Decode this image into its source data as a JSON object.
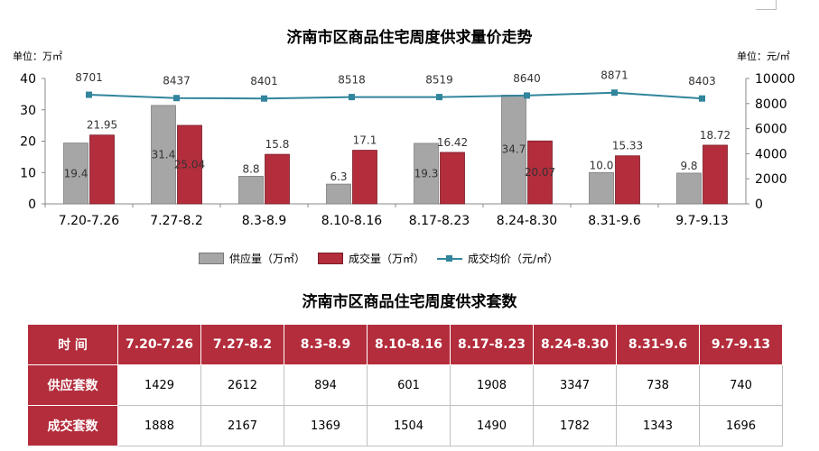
{
  "header": {
    "chart_title": "济南市区商品住宅周度供求量价走势",
    "left_unit": "单位：万㎡",
    "right_unit": "单位：元/㎡"
  },
  "legend": {
    "supply": "供应量（万㎡）",
    "deal": "成交量（万㎡）",
    "price": "成交均价（元/㎡）"
  },
  "colors": {
    "supply": "#a6a6a6",
    "deal": "#b32d3c",
    "price": "#31859c",
    "table_header": "#b32d3c"
  },
  "chart_data": {
    "type": "bar+line",
    "title": "济南市区商品住宅周度供求量价走势",
    "categories": [
      "7.20-7.26",
      "7.27-8.2",
      "8.3-8.9",
      "8.10-8.16",
      "8.17-8.23",
      "8.24-8.30",
      "8.31-9.6",
      "9.7-9.13"
    ],
    "series": [
      {
        "name": "供应量（万㎡）",
        "type": "bar",
        "axis": "left",
        "values": [
          19.4,
          31.4,
          8.8,
          6.3,
          19.3,
          34.7,
          10.0,
          9.8
        ]
      },
      {
        "name": "成交量（万㎡）",
        "type": "bar",
        "axis": "left",
        "values": [
          21.95,
          25.04,
          15.8,
          17.1,
          16.42,
          20.07,
          15.33,
          18.72
        ]
      },
      {
        "name": "成交均价（元/㎡）",
        "type": "line",
        "axis": "right",
        "values": [
          8701,
          8437,
          8401,
          8518,
          8519,
          8640,
          8871,
          8403
        ]
      }
    ],
    "left_axis": {
      "label": "单位：万㎡",
      "ylim": [
        0,
        40
      ],
      "ticks": [
        0,
        10,
        20,
        30,
        40
      ]
    },
    "right_axis": {
      "label": "单位：元/㎡",
      "ylim": [
        0,
        10000
      ],
      "ticks": [
        0,
        2000,
        4000,
        6000,
        8000,
        10000
      ]
    },
    "supply_labels": [
      "19.4",
      "31.4",
      "8.8",
      "6.3",
      "19.3",
      "34.7",
      "10.0",
      "9.8"
    ],
    "deal_labels": [
      "21.95",
      "25.04",
      "15.8",
      "17.1",
      "16.42",
      "20.07",
      "15.33",
      "18.72"
    ],
    "price_labels": [
      "8701",
      "8437",
      "8401",
      "8518",
      "8519",
      "8640",
      "8871",
      "8403"
    ],
    "grid": false,
    "legend_position": "bottom"
  },
  "table": {
    "title": "济南市区商品住宅周度供求套数",
    "header": [
      "时 间",
      "7.20-7.26",
      "7.27-8.2",
      "8.3-8.9",
      "8.10-8.16",
      "8.17-8.23",
      "8.24-8.30",
      "8.31-9.6",
      "9.7-9.13"
    ],
    "rows": [
      {
        "label": "供应套数",
        "values": [
          "1429",
          "2612",
          "894",
          "601",
          "1908",
          "3347",
          "738",
          "740"
        ]
      },
      {
        "label": "成交套数",
        "values": [
          "1888",
          "2167",
          "1369",
          "1504",
          "1490",
          "1782",
          "1343",
          "1696"
        ]
      }
    ]
  }
}
